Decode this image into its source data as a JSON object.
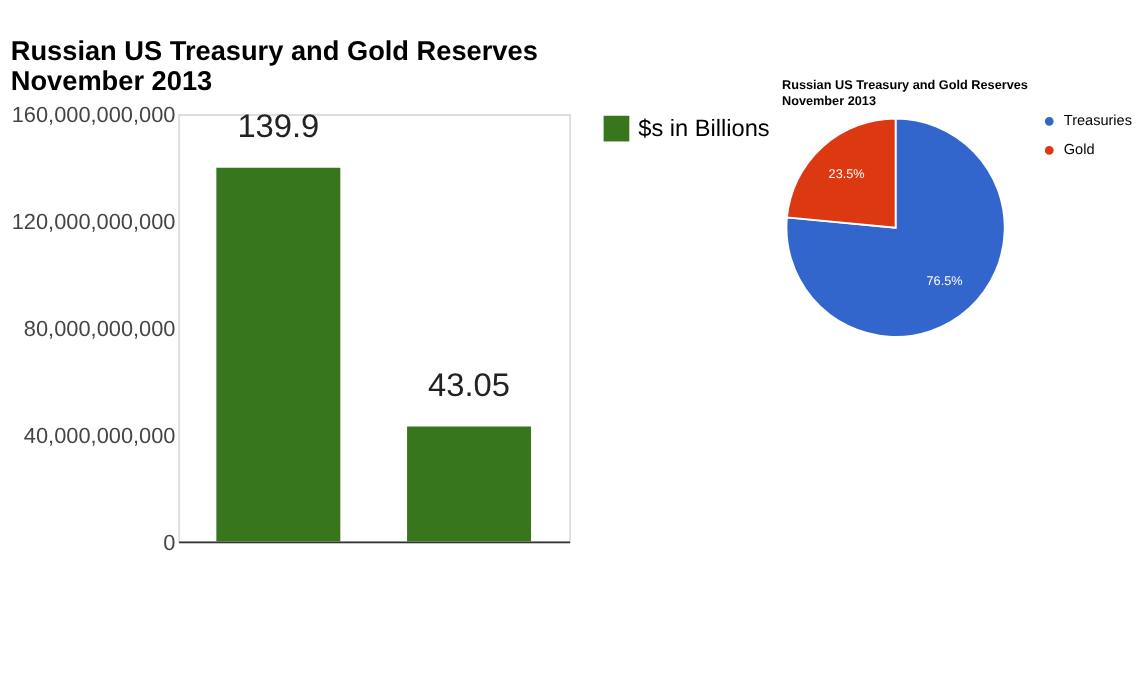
{
  "chart_data": [
    {
      "type": "bar",
      "title": "Russian US Treasury and Gold Reserves\nNovember 2013",
      "categories": [
        null,
        null
      ],
      "series": [
        {
          "name": "$s in Billions",
          "color": "#38761d",
          "values": [
            139900000000,
            43050000000
          ]
        }
      ],
      "value_labels": [
        "139.9",
        "43.05"
      ],
      "ylim": [
        0,
        160000000000
      ],
      "yticks": [
        0,
        {
          "value": 40000000000,
          "label": "40,000,000,000"
        },
        {
          "value": 80000000000,
          "label": "80,000,000,000"
        },
        {
          "value": 120000000000,
          "label": "120,000,000,000"
        },
        {
          "value": 160000000000,
          "label": "160,000,000,000"
        }
      ],
      "grid": false,
      "legend": "top right"
    },
    {
      "type": "pie",
      "title": "Russian US Treasury and Gold Reserves\nNovember 2013",
      "categories": [
        "Treasuries",
        "Gold"
      ],
      "values": [
        76.5,
        23.5
      ],
      "colors": [
        "#3366cc",
        "#dc3912"
      ],
      "value_labels": [
        "76.5%",
        "23.5%"
      ],
      "legend": "right"
    }
  ]
}
